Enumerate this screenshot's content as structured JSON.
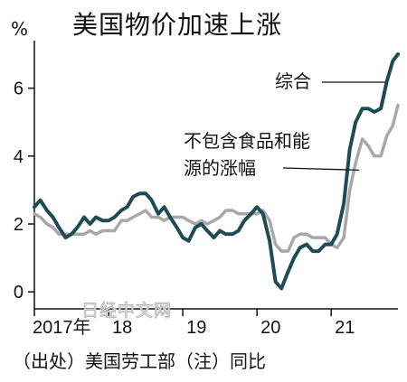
{
  "title": "美国物价加速上涨",
  "source_note": "（出处）美国劳工部（注）同比",
  "watermark": "日经中文网",
  "colors": {
    "headline": "#1f4b55",
    "core": "#a8a8a8",
    "axis": "#111111"
  },
  "chart_data": {
    "type": "line",
    "ylabel": "%",
    "ylim": [
      -0.5,
      7.4
    ],
    "yticks": [
      0,
      2,
      4,
      6
    ],
    "xlim": [
      2017.0,
      2021.9
    ],
    "xticks": [
      {
        "x": 2017.0,
        "label": "2017年"
      },
      {
        "x": 2018.0,
        "label": "18"
      },
      {
        "x": 2019.0,
        "label": "19"
      },
      {
        "x": 2020.0,
        "label": "20"
      },
      {
        "x": 2021.0,
        "label": "21"
      }
    ],
    "grid": false,
    "series": [
      {
        "name": "综合",
        "style": "headline",
        "points": [
          [
            2017.0,
            2.5
          ],
          [
            2017.08,
            2.7
          ],
          [
            2017.17,
            2.4
          ],
          [
            2017.25,
            2.2
          ],
          [
            2017.33,
            1.9
          ],
          [
            2017.42,
            1.6
          ],
          [
            2017.5,
            1.7
          ],
          [
            2017.58,
            1.9
          ],
          [
            2017.67,
            2.2
          ],
          [
            2017.75,
            2.0
          ],
          [
            2017.83,
            2.2
          ],
          [
            2017.92,
            2.1
          ],
          [
            2018.0,
            2.1
          ],
          [
            2018.08,
            2.2
          ],
          [
            2018.17,
            2.4
          ],
          [
            2018.25,
            2.5
          ],
          [
            2018.33,
            2.8
          ],
          [
            2018.42,
            2.9
          ],
          [
            2018.5,
            2.9
          ],
          [
            2018.58,
            2.7
          ],
          [
            2018.67,
            2.3
          ],
          [
            2018.75,
            2.5
          ],
          [
            2018.83,
            2.2
          ],
          [
            2018.92,
            1.9
          ],
          [
            2019.0,
            1.6
          ],
          [
            2019.08,
            1.5
          ],
          [
            2019.17,
            1.9
          ],
          [
            2019.25,
            2.0
          ],
          [
            2019.33,
            1.8
          ],
          [
            2019.42,
            1.6
          ],
          [
            2019.5,
            1.8
          ],
          [
            2019.58,
            1.7
          ],
          [
            2019.67,
            1.7
          ],
          [
            2019.75,
            1.8
          ],
          [
            2019.83,
            2.1
          ],
          [
            2019.92,
            2.3
          ],
          [
            2020.0,
            2.5
          ],
          [
            2020.08,
            2.3
          ],
          [
            2020.17,
            1.5
          ],
          [
            2020.25,
            0.3
          ],
          [
            2020.33,
            0.1
          ],
          [
            2020.42,
            0.6
          ],
          [
            2020.5,
            1.0
          ],
          [
            2020.58,
            1.3
          ],
          [
            2020.67,
            1.4
          ],
          [
            2020.75,
            1.2
          ],
          [
            2020.83,
            1.2
          ],
          [
            2020.92,
            1.4
          ],
          [
            2021.0,
            1.4
          ],
          [
            2021.08,
            1.7
          ],
          [
            2021.17,
            2.6
          ],
          [
            2021.25,
            4.2
          ],
          [
            2021.33,
            5.0
          ],
          [
            2021.42,
            5.4
          ],
          [
            2021.5,
            5.4
          ],
          [
            2021.58,
            5.3
          ],
          [
            2021.67,
            5.4
          ],
          [
            2021.75,
            6.2
          ],
          [
            2021.83,
            6.8
          ],
          [
            2021.9,
            7.0
          ]
        ]
      },
      {
        "name": "不包含食品和能源的涨幅",
        "style": "core",
        "points": [
          [
            2017.0,
            2.3
          ],
          [
            2017.08,
            2.2
          ],
          [
            2017.17,
            2.0
          ],
          [
            2017.25,
            1.9
          ],
          [
            2017.33,
            1.7
          ],
          [
            2017.42,
            1.7
          ],
          [
            2017.5,
            1.7
          ],
          [
            2017.58,
            1.7
          ],
          [
            2017.67,
            1.7
          ],
          [
            2017.75,
            1.8
          ],
          [
            2017.83,
            1.7
          ],
          [
            2017.92,
            1.8
          ],
          [
            2018.0,
            1.8
          ],
          [
            2018.08,
            1.8
          ],
          [
            2018.17,
            2.1
          ],
          [
            2018.25,
            2.1
          ],
          [
            2018.33,
            2.2
          ],
          [
            2018.42,
            2.3
          ],
          [
            2018.5,
            2.4
          ],
          [
            2018.58,
            2.2
          ],
          [
            2018.67,
            2.2
          ],
          [
            2018.75,
            2.1
          ],
          [
            2018.83,
            2.2
          ],
          [
            2018.92,
            2.2
          ],
          [
            2019.0,
            2.2
          ],
          [
            2019.08,
            2.1
          ],
          [
            2019.17,
            2.0
          ],
          [
            2019.25,
            2.1
          ],
          [
            2019.33,
            2.0
          ],
          [
            2019.42,
            2.1
          ],
          [
            2019.5,
            2.2
          ],
          [
            2019.58,
            2.4
          ],
          [
            2019.67,
            2.4
          ],
          [
            2019.75,
            2.3
          ],
          [
            2019.83,
            2.3
          ],
          [
            2019.92,
            2.3
          ],
          [
            2020.0,
            2.3
          ],
          [
            2020.08,
            2.4
          ],
          [
            2020.17,
            2.1
          ],
          [
            2020.25,
            1.4
          ],
          [
            2020.33,
            1.2
          ],
          [
            2020.42,
            1.2
          ],
          [
            2020.5,
            1.6
          ],
          [
            2020.58,
            1.7
          ],
          [
            2020.67,
            1.7
          ],
          [
            2020.75,
            1.6
          ],
          [
            2020.83,
            1.6
          ],
          [
            2020.92,
            1.6
          ],
          [
            2021.0,
            1.4
          ],
          [
            2021.08,
            1.3
          ],
          [
            2021.17,
            1.6
          ],
          [
            2021.25,
            3.0
          ],
          [
            2021.33,
            3.8
          ],
          [
            2021.42,
            4.5
          ],
          [
            2021.5,
            4.3
          ],
          [
            2021.58,
            4.0
          ],
          [
            2021.67,
            4.0
          ],
          [
            2021.75,
            4.6
          ],
          [
            2021.83,
            4.9
          ],
          [
            2021.9,
            5.5
          ]
        ]
      }
    ]
  }
}
